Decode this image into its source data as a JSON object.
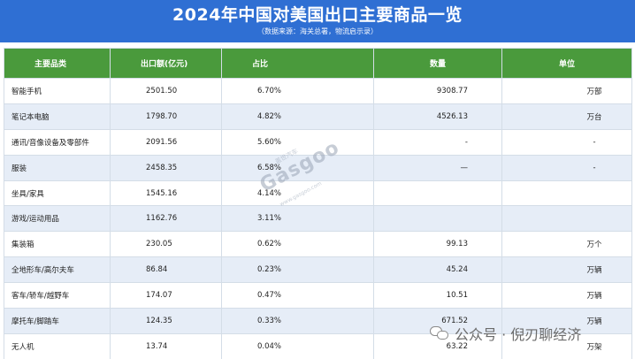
{
  "header": {
    "title": "2024年中国对美国出口主要商品一览",
    "subtitle": "（数据来源：海关总署，物流启示录）"
  },
  "table": {
    "columns": [
      "主要品类",
      "出口额(亿元)",
      "占比",
      "数量",
      "单位"
    ],
    "rows": [
      {
        "category": "智能手机",
        "value": "2501.50",
        "share": "6.70%",
        "qty": "9308.77",
        "unit": "万部"
      },
      {
        "category": "笔记本电脑",
        "value": "1798.70",
        "share": "4.82%",
        "qty": "4526.13",
        "unit": "万台"
      },
      {
        "category": "通讯/音像设备及零部件",
        "value": "2091.56",
        "share": "5.60%",
        "qty": "-",
        "unit": "-"
      },
      {
        "category": "服装",
        "value": "2458.35",
        "share": "6.58%",
        "qty": "—",
        "unit": "-"
      },
      {
        "category": "坐具/家具",
        "value": "1545.16",
        "share": "4.14%",
        "qty": "",
        "unit": ""
      },
      {
        "category": "游戏/运动用品",
        "value": "1162.76",
        "share": "3.11%",
        "qty": "",
        "unit": ""
      },
      {
        "category": "集装箱",
        "value": "230.05",
        "share": "0.62%",
        "qty": "99.13",
        "unit": "万个"
      },
      {
        "category": "全地形车/高尔夫车",
        "value": "86.84",
        "share": "0.23%",
        "qty": "45.24",
        "unit": "万辆"
      },
      {
        "category": "客车/轿车/越野车",
        "value": "174.07",
        "share": "0.47%",
        "qty": "10.51",
        "unit": "万辆"
      },
      {
        "category": "摩托车/脚踏车",
        "value": "124.35",
        "share": "0.33%",
        "qty": "671.52",
        "unit": "万辆"
      },
      {
        "category": "无人机",
        "value": "13.74",
        "share": "0.04%",
        "qty": "63.22",
        "unit": "万架"
      }
    ]
  },
  "watermarks": {
    "brand": "Gasgoo",
    "brand_cn": "盖世汽车",
    "brand_url": "www.gasgoo.com",
    "account": "公众号 · 倪刃聊经济",
    "account_icon": "wechat-icon"
  }
}
